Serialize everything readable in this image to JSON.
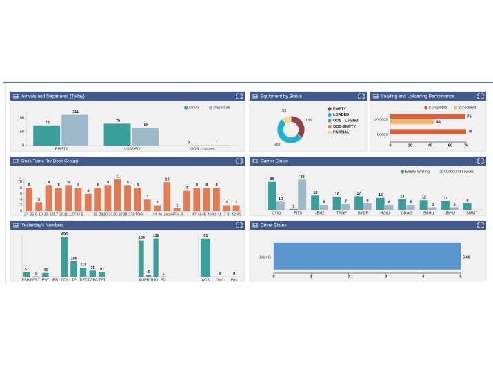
{
  "chart_data": [
    {
      "type": "bar",
      "title": "Arrivals and Departures (Today)",
      "categories": [
        "EMPTY",
        "LOADED",
        "OOS - Loaded"
      ],
      "series": [
        {
          "name": "Arrival",
          "color": "#3a9e9a",
          "values": [
            73,
            79,
            0
          ]
        },
        {
          "name": "Departure",
          "color": "#9db8c9",
          "values": [
            111,
            65,
            1
          ]
        }
      ],
      "ylim": [
        0,
        115
      ],
      "yticks": [
        0,
        50,
        100
      ],
      "legend": "top-right"
    },
    {
      "type": "pie",
      "title": "Equipment by Status",
      "categories": [
        "EMPTY",
        "LOADED",
        "OOS - Loaded",
        "OOS-EMPTY",
        "PARTIAL"
      ],
      "values": [
        185,
        287,
        0,
        0,
        59
      ],
      "colors": [
        "#8e4444",
        "#1fb0d2",
        "#3aa89a",
        "#e0785c",
        "#f3d98a"
      ],
      "legend": "right"
    },
    {
      "type": "hbar",
      "title": "Loading and Unloading Performance",
      "categories": [
        "Unloads",
        "Loads"
      ],
      "series": [
        {
          "name": "Completed",
          "color": "#d9603f",
          "values": [
            75,
            76
          ]
        },
        {
          "name": "Scheduled",
          "color": "#f1b56b",
          "values": [
            44,
            0
          ],
          "value_labels": [
            "44",
            null
          ]
        }
      ],
      "xlim": [
        0,
        76
      ],
      "xticks": [
        0,
        20,
        40,
        60,
        76
      ],
      "legend": "top-right"
    },
    {
      "type": "bar",
      "title": "Dock Turns (by Dock Group)",
      "categories": [
        "24-25",
        "9-10",
        "13-14",
        "17-20",
        "11-12",
        "T M S",
        null,
        "28-29",
        "30-31",
        "26-27",
        "38-37",
        "STOR",
        null,
        "44-46",
        "skid",
        "HTM R",
        null,
        "47-48",
        "45-46",
        "40-41",
        "7-8",
        "42-43"
      ],
      "values": [
        8,
        3,
        9,
        8,
        9,
        8,
        6,
        8,
        9,
        11,
        9,
        8,
        4,
        2,
        10,
        1,
        7,
        8,
        8,
        8,
        2,
        2
      ],
      "color": "#e07b53",
      "ylim": [
        0,
        11
      ],
      "yticks": [
        0,
        2,
        4,
        6,
        8,
        10,
        11
      ]
    },
    {
      "type": "bar",
      "title": "Carrier Status",
      "categories": [
        "CTID",
        "FITS",
        "JBHZ",
        "TRNF",
        "RYDR",
        "HGIU",
        "CRAG",
        "EMHU",
        "JBHU",
        "SMMT"
      ],
      "series": [
        {
          "name": "Empty Waiting",
          "color": "#3a9e9a",
          "values": [
            35,
            1,
            18,
            16,
            17,
            15,
            13,
            12,
            11,
            8
          ]
        },
        {
          "name": "Outbound Loaded",
          "color": "#9db8c9",
          "values": [
            10,
            38,
            6,
            7,
            8,
            6,
            6,
            3,
            3,
            0
          ],
          "value_labels": [
            "10",
            "38",
            "6",
            "7",
            "8",
            "6",
            "6",
            "3",
            "3",
            null
          ]
        }
      ],
      "ylim": [
        0,
        40
      ],
      "legend": "top-right"
    },
    {
      "type": "bar",
      "title": "Yesterday's Numbers",
      "categories": [
        "ESBY",
        "EST",
        "FST",
        "IFR",
        "TCY",
        "TE",
        "TIFC",
        "TOFC",
        "TST"
      ],
      "values": [
        57,
        5,
        46,
        0,
        496,
        190,
        112,
        75,
        61
      ],
      "value_labels": [
        "57",
        "5",
        "46",
        null,
        "496",
        "190",
        "112",
        "75",
        "61"
      ],
      "color": "#3a9e9a",
      "ylim": [
        0,
        500
      ]
    },
    {
      "type": "bar",
      "categories": [
        "AU",
        "FRGI",
        "IO",
        "PU"
      ],
      "values": [
        104,
        5,
        110,
        1
      ],
      "color": "#3a9e9a",
      "ylim": [
        0,
        115
      ]
    },
    {
      "type": "bar",
      "categories": [
        "ACS",
        "Distr",
        "Port"
      ],
      "values": [
        61,
        0,
        0
      ],
      "color": "#3a9e9a",
      "ylim": [
        0,
        64
      ]
    },
    {
      "type": "hbar",
      "title": "Driver Status",
      "categories": [
        "Josh G"
      ],
      "values": [
        5
      ],
      "value_labels": [
        "5.00"
      ],
      "color": "#5a96cc",
      "xlim": [
        0,
        5
      ],
      "xticks": [
        0,
        1,
        2,
        3,
        4,
        5
      ]
    }
  ]
}
